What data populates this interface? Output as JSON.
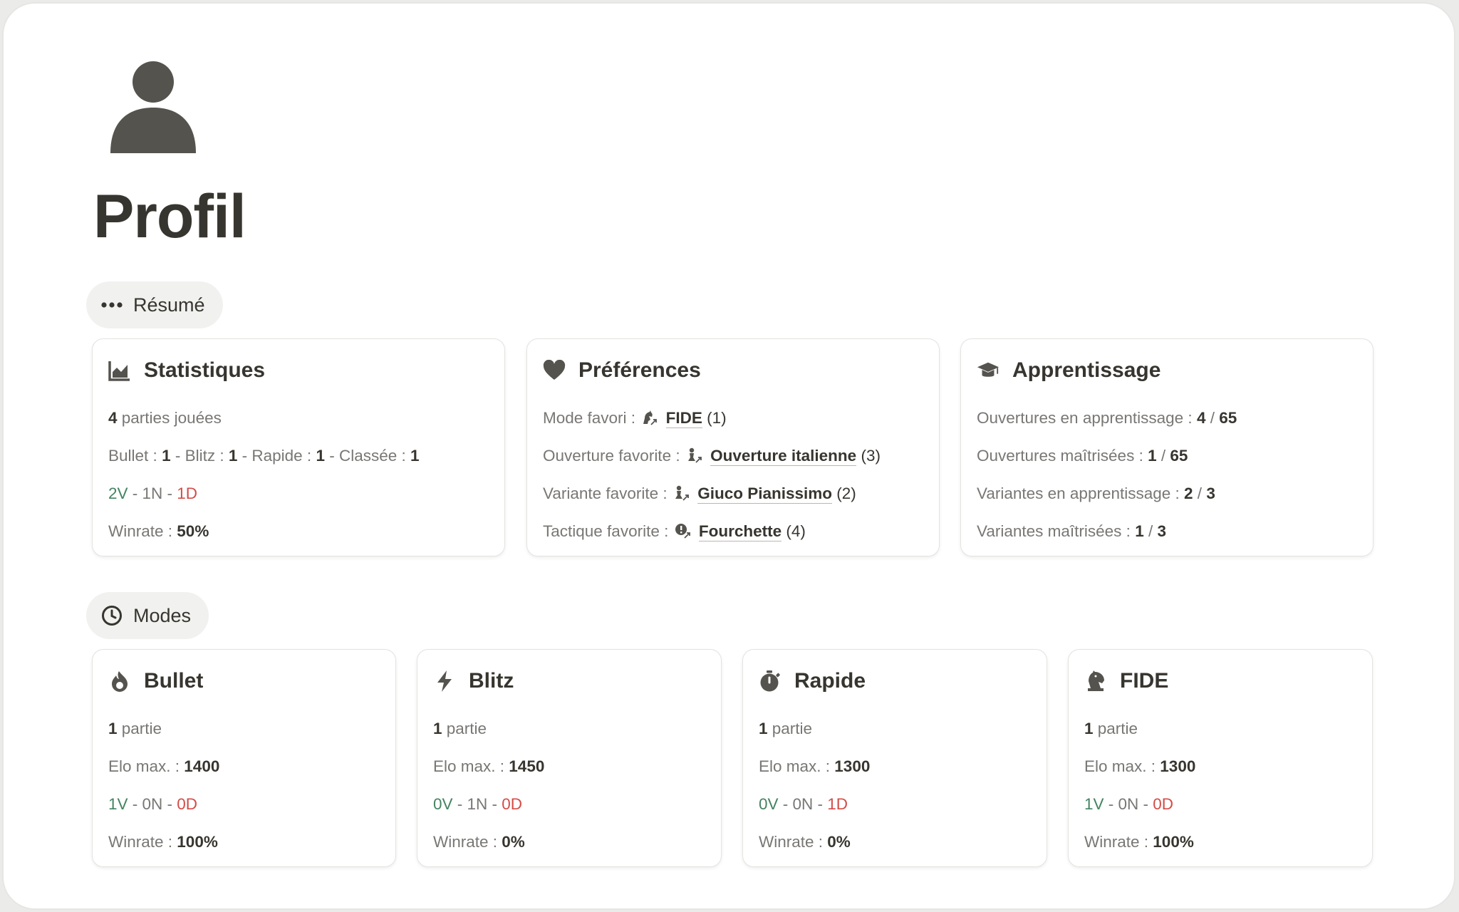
{
  "page": {
    "title": "Profil"
  },
  "sections": {
    "resume": "Résumé",
    "modes": "Modes"
  },
  "stats": {
    "title": "Statistiques",
    "games_count": "4",
    "games_label": "parties jouées",
    "bullet_label": "Bullet :",
    "bullet_value": "1",
    "blitz_label": "Blitz :",
    "blitz_value": "1",
    "rapide_label": "Rapide :",
    "rapide_value": "1",
    "classee_label": "Classée :",
    "classee_value": "1",
    "wins": "2V",
    "draws": "1N",
    "losses": "1D",
    "winrate_label": "Winrate :",
    "winrate_value": "50%"
  },
  "prefs": {
    "title": "Préférences",
    "mode_label": "Mode favori :",
    "mode_value": "FIDE",
    "mode_count": "(1)",
    "opening_label": "Ouverture favorite :",
    "opening_value": "Ouverture italienne",
    "opening_count": "(3)",
    "variant_label": "Variante favorite :",
    "variant_value": "Giuco Pianissimo",
    "variant_count": "(2)",
    "tactic_label": "Tactique favorite :",
    "tactic_value": "Fourchette",
    "tactic_count": "(4)"
  },
  "learning": {
    "title": "Apprentissage",
    "openings_learning_label": "Ouvertures en apprentissage :",
    "openings_learning_value": "4",
    "openings_learning_total": "65",
    "openings_mastered_label": "Ouvertures maîtrisées :",
    "openings_mastered_value": "1",
    "openings_mastered_total": "65",
    "variants_learning_label": "Variantes en apprentissage :",
    "variants_learning_value": "2",
    "variants_learning_total": "3",
    "variants_mastered_label": "Variantes maîtrisées :",
    "variants_mastered_value": "1",
    "variants_mastered_total": "3"
  },
  "modes": [
    {
      "name": "Bullet",
      "icon": "fire-icon",
      "games": "1",
      "games_label": "partie",
      "elo_label": "Elo max. :",
      "elo": "1400",
      "wins": "1V",
      "draws": "0N",
      "losses": "0D",
      "winrate_label": "Winrate :",
      "winrate": "100%"
    },
    {
      "name": "Blitz",
      "icon": "bolt-icon",
      "games": "1",
      "games_label": "partie",
      "elo_label": "Elo max. :",
      "elo": "1450",
      "wins": "0V",
      "draws": "1N",
      "losses": "0D",
      "winrate_label": "Winrate :",
      "winrate": "0%"
    },
    {
      "name": "Rapide",
      "icon": "stopwatch-icon",
      "games": "1",
      "games_label": "partie",
      "elo_label": "Elo max. :",
      "elo": "1300",
      "wins": "0V",
      "draws": "0N",
      "losses": "1D",
      "winrate_label": "Winrate :",
      "winrate": "0%"
    },
    {
      "name": "FIDE",
      "icon": "chess-knight-icon",
      "games": "1",
      "games_label": "partie",
      "elo_label": "Elo max. :",
      "elo": "1300",
      "wins": "1V",
      "draws": "0N",
      "losses": "0D",
      "winrate_label": "Winrate :",
      "winrate": "100%"
    }
  ],
  "colors": {
    "text": "#37352f",
    "muted": "#787774",
    "win": "#448361",
    "loss": "#d44c47",
    "icon": "#55534e"
  }
}
